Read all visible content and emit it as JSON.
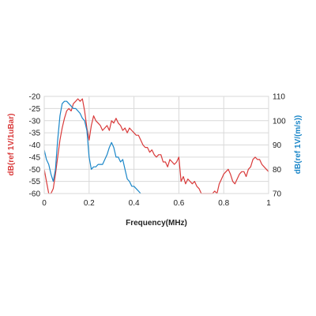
{
  "chart_data": {
    "type": "line",
    "xlabel": "Frequency(MHz)",
    "ylabel_left": "dB(ref  1V/1uBar)",
    "ylabel_right": "dB(ref 1V/(m/s))",
    "xlim": [
      0,
      1
    ],
    "ylim_left": [
      -60,
      -20
    ],
    "ylim_right": [
      70,
      110
    ],
    "x_ticks": [
      "0",
      "0.2",
      "0.4",
      "0.6",
      "0.8",
      "1"
    ],
    "y_left_ticks": [
      "-20",
      "-25",
      "-30",
      "-35",
      "-40",
      "-45",
      "-50",
      "-55",
      "-60"
    ],
    "y_right_ticks": [
      "110",
      "100",
      "90",
      "80",
      "70"
    ],
    "grid": true,
    "series": [
      {
        "axis": "left",
        "color": "#d93a3a",
        "x": [
          0.0,
          0.01,
          0.02,
          0.03,
          0.04,
          0.05,
          0.06,
          0.07,
          0.08,
          0.09,
          0.1,
          0.11,
          0.12,
          0.13,
          0.14,
          0.15,
          0.16,
          0.17,
          0.18,
          0.19,
          0.2,
          0.21,
          0.22,
          0.23,
          0.24,
          0.25,
          0.26,
          0.27,
          0.28,
          0.29,
          0.3,
          0.31,
          0.32,
          0.33,
          0.34,
          0.35,
          0.36,
          0.37,
          0.38,
          0.39,
          0.4,
          0.41,
          0.42,
          0.43,
          0.44,
          0.45,
          0.46,
          0.47,
          0.48,
          0.49,
          0.5,
          0.51,
          0.52,
          0.53,
          0.54,
          0.55,
          0.56,
          0.57,
          0.58,
          0.59,
          0.6,
          0.61,
          0.62,
          0.63,
          0.64,
          0.65,
          0.66,
          0.67,
          0.68,
          0.69,
          0.7,
          0.71,
          0.72,
          0.73,
          0.74,
          0.75,
          0.76,
          0.77,
          0.78,
          0.79,
          0.8,
          0.81,
          0.82,
          0.83,
          0.84,
          0.85,
          0.86,
          0.87,
          0.88,
          0.89,
          0.9,
          0.91,
          0.92,
          0.93,
          0.94,
          0.95,
          0.96,
          0.97,
          0.98,
          0.99,
          1.0
        ],
        "values": [
          -50,
          -55,
          -60,
          -60,
          -58,
          -52,
          -45,
          -38,
          -33,
          -29,
          -26,
          -25,
          -26,
          -23,
          -22,
          -21,
          -22,
          -21,
          -26,
          -33,
          -38,
          -32,
          -28,
          -30,
          -31,
          -32,
          -34,
          -33,
          -32,
          -34,
          -30,
          -31,
          -29,
          -31,
          -32,
          -34,
          -33,
          -35,
          -33,
          -34,
          -35,
          -36,
          -36,
          -38,
          -40,
          -41,
          -41,
          -43,
          -42,
          -44,
          -45,
          -44,
          -44,
          -47,
          -47,
          -49,
          -46,
          -47,
          -48,
          -47,
          -45,
          -55,
          -53,
          -56,
          -54,
          -55,
          -56,
          -55,
          -57,
          -58,
          -60,
          -60,
          -60,
          -60,
          -60,
          -60,
          -59,
          -60,
          -56,
          -54,
          -52,
          -51,
          -50,
          -52,
          -55,
          -56,
          -54,
          -52,
          -51,
          -51,
          -53,
          -50,
          -49,
          -46,
          -45,
          -46,
          -46,
          -48,
          -49,
          -50,
          -51
        ]
      },
      {
        "axis": "right",
        "color": "#1a86c8",
        "x": [
          0.0,
          0.01,
          0.02,
          0.03,
          0.04,
          0.05,
          0.06,
          0.07,
          0.08,
          0.09,
          0.1,
          0.11,
          0.12,
          0.13,
          0.14,
          0.15,
          0.16,
          0.17,
          0.18,
          0.19,
          0.2,
          0.21,
          0.22,
          0.23,
          0.24,
          0.25,
          0.26,
          0.27,
          0.28,
          0.29,
          0.3,
          0.31,
          0.32,
          0.33,
          0.34,
          0.35,
          0.36,
          0.37,
          0.38,
          0.39,
          0.4,
          0.41,
          0.42,
          0.43
        ],
        "values": [
          88,
          84,
          82,
          78,
          75,
          80,
          92,
          102,
          107,
          108,
          108,
          107,
          106,
          105,
          105,
          104,
          103,
          101,
          100,
          96,
          85,
          80,
          81,
          81,
          82,
          82,
          82,
          84,
          86,
          89,
          91,
          89,
          85,
          85,
          83,
          84,
          80,
          76,
          75,
          73,
          73,
          72,
          71,
          70
        ]
      }
    ]
  }
}
